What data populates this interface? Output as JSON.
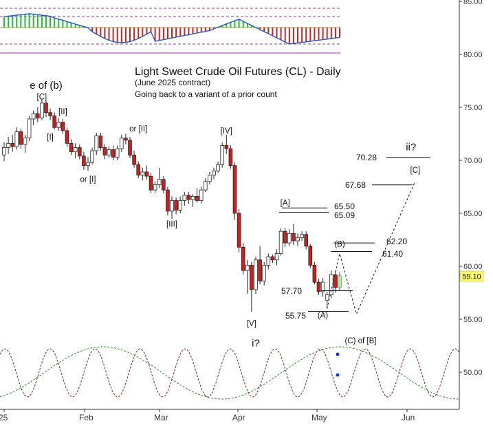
{
  "chart_data": {
    "type": "candlestick",
    "title": "Light Sweet Crude Oil Futures (CL) - Daily",
    "subtitle": "(June 2025 contract)",
    "note": "Going back to a variant of a prior count",
    "y_ticks": [
      "50.00",
      "55.00",
      "60.00",
      "65.00",
      "70.00",
      "75.00",
      "80.00",
      "85.00"
    ],
    "x_ticks": [
      "25",
      "Feb",
      "Mar",
      "Apr",
      "May",
      "Jun"
    ],
    "ylim": [
      46.5,
      85.5
    ],
    "last_price": "59.10",
    "series": [
      {
        "t": 0,
        "o": 70.5,
        "h": 71.7,
        "l": 69.9,
        "c": 71.2
      },
      {
        "t": 1,
        "o": 71.2,
        "h": 72.2,
        "l": 70.6,
        "c": 71.6
      },
      {
        "t": 2,
        "o": 71.6,
        "h": 72.4,
        "l": 70.8,
        "c": 71.3
      },
      {
        "t": 3,
        "o": 71.3,
        "h": 73.1,
        "l": 71.0,
        "c": 72.7
      },
      {
        "t": 4,
        "o": 72.7,
        "h": 73.0,
        "l": 71.1,
        "c": 71.5
      },
      {
        "t": 5,
        "o": 71.5,
        "h": 72.4,
        "l": 70.7,
        "c": 72.1
      },
      {
        "t": 6,
        "o": 72.1,
        "h": 74.2,
        "l": 71.8,
        "c": 73.9
      },
      {
        "t": 7,
        "o": 73.9,
        "h": 74.7,
        "l": 73.3,
        "c": 74.4
      },
      {
        "t": 8,
        "o": 74.4,
        "h": 75.0,
        "l": 73.6,
        "c": 74.0
      },
      {
        "t": 9,
        "o": 74.0,
        "h": 75.8,
        "l": 73.8,
        "c": 75.4
      },
      {
        "t": 10,
        "o": 75.4,
        "h": 75.6,
        "l": 74.1,
        "c": 74.5
      },
      {
        "t": 11,
        "o": 74.5,
        "h": 74.9,
        "l": 73.8,
        "c": 74.2
      },
      {
        "t": 12,
        "o": 74.2,
        "h": 74.5,
        "l": 72.9,
        "c": 73.1
      },
      {
        "t": 13,
        "o": 73.1,
        "h": 74.0,
        "l": 72.8,
        "c": 73.6
      },
      {
        "t": 14,
        "o": 73.6,
        "h": 73.9,
        "l": 72.5,
        "c": 72.8
      },
      {
        "t": 15,
        "o": 72.8,
        "h": 73.1,
        "l": 71.3,
        "c": 71.6
      },
      {
        "t": 16,
        "o": 71.6,
        "h": 72.0,
        "l": 70.5,
        "c": 70.8
      },
      {
        "t": 17,
        "o": 70.8,
        "h": 71.6,
        "l": 70.2,
        "c": 71.2
      },
      {
        "t": 18,
        "o": 71.2,
        "h": 71.5,
        "l": 70.1,
        "c": 70.4
      },
      {
        "t": 19,
        "o": 70.4,
        "h": 70.8,
        "l": 69.1,
        "c": 69.5
      },
      {
        "t": 20,
        "o": 69.5,
        "h": 70.3,
        "l": 69.0,
        "c": 69.8
      },
      {
        "t": 21,
        "o": 69.8,
        "h": 71.2,
        "l": 69.6,
        "c": 70.9
      },
      {
        "t": 22,
        "o": 70.9,
        "h": 72.6,
        "l": 70.5,
        "c": 72.3
      },
      {
        "t": 23,
        "o": 72.3,
        "h": 72.6,
        "l": 70.9,
        "c": 71.2
      },
      {
        "t": 24,
        "o": 71.2,
        "h": 71.5,
        "l": 70.1,
        "c": 70.5
      },
      {
        "t": 25,
        "o": 70.5,
        "h": 71.3,
        "l": 70.2,
        "c": 71.0
      },
      {
        "t": 26,
        "o": 71.0,
        "h": 71.4,
        "l": 70.0,
        "c": 70.3
      },
      {
        "t": 27,
        "o": 70.3,
        "h": 71.4,
        "l": 70.0,
        "c": 71.1
      },
      {
        "t": 28,
        "o": 71.1,
        "h": 72.4,
        "l": 70.8,
        "c": 72.1
      },
      {
        "t": 29,
        "o": 72.1,
        "h": 72.5,
        "l": 71.5,
        "c": 71.9
      },
      {
        "t": 30,
        "o": 71.9,
        "h": 72.2,
        "l": 70.2,
        "c": 70.5
      },
      {
        "t": 31,
        "o": 70.5,
        "h": 70.9,
        "l": 69.3,
        "c": 69.6
      },
      {
        "t": 32,
        "o": 69.6,
        "h": 69.9,
        "l": 68.3,
        "c": 68.6
      },
      {
        "t": 33,
        "o": 68.6,
        "h": 69.3,
        "l": 68.1,
        "c": 68.9
      },
      {
        "t": 34,
        "o": 68.9,
        "h": 69.5,
        "l": 68.2,
        "c": 68.5
      },
      {
        "t": 35,
        "o": 68.5,
        "h": 68.8,
        "l": 66.9,
        "c": 67.2
      },
      {
        "t": 36,
        "o": 67.2,
        "h": 68.0,
        "l": 66.9,
        "c": 67.7
      },
      {
        "t": 37,
        "o": 67.7,
        "h": 69.3,
        "l": 67.4,
        "c": 68.2
      },
      {
        "t": 38,
        "o": 68.2,
        "h": 68.5,
        "l": 66.9,
        "c": 67.2
      },
      {
        "t": 39,
        "o": 67.2,
        "h": 67.5,
        "l": 64.8,
        "c": 65.2
      },
      {
        "t": 40,
        "o": 65.2,
        "h": 66.6,
        "l": 64.5,
        "c": 66.2
      },
      {
        "t": 41,
        "o": 66.2,
        "h": 66.5,
        "l": 64.9,
        "c": 65.3
      },
      {
        "t": 42,
        "o": 65.3,
        "h": 66.6,
        "l": 65.0,
        "c": 66.2
      },
      {
        "t": 43,
        "o": 66.2,
        "h": 67.0,
        "l": 65.7,
        "c": 66.7
      },
      {
        "t": 44,
        "o": 66.7,
        "h": 67.0,
        "l": 65.9,
        "c": 66.3
      },
      {
        "t": 45,
        "o": 66.3,
        "h": 66.8,
        "l": 65.6,
        "c": 66.6
      },
      {
        "t": 46,
        "o": 66.6,
        "h": 67.4,
        "l": 66.0,
        "c": 66.2
      },
      {
        "t": 47,
        "o": 66.2,
        "h": 67.5,
        "l": 65.9,
        "c": 67.2
      },
      {
        "t": 48,
        "o": 67.2,
        "h": 68.3,
        "l": 67.0,
        "c": 68.0
      },
      {
        "t": 49,
        "o": 68.0,
        "h": 68.9,
        "l": 67.7,
        "c": 68.6
      },
      {
        "t": 50,
        "o": 68.6,
        "h": 69.3,
        "l": 68.2,
        "c": 69.0
      },
      {
        "t": 51,
        "o": 69.0,
        "h": 69.9,
        "l": 68.8,
        "c": 69.6
      },
      {
        "t": 52,
        "o": 69.6,
        "h": 71.7,
        "l": 69.3,
        "c": 71.4
      },
      {
        "t": 53,
        "o": 71.4,
        "h": 72.4,
        "l": 70.6,
        "c": 71.1
      },
      {
        "t": 54,
        "o": 71.1,
        "h": 71.4,
        "l": 69.2,
        "c": 69.5
      },
      {
        "t": 55,
        "o": 69.5,
        "h": 69.8,
        "l": 64.4,
        "c": 65.0
      },
      {
        "t": 56,
        "o": 65.0,
        "h": 65.4,
        "l": 61.3,
        "c": 61.8
      },
      {
        "t": 57,
        "o": 61.8,
        "h": 62.2,
        "l": 59.2,
        "c": 59.6
      },
      {
        "t": 58,
        "o": 59.6,
        "h": 60.6,
        "l": 57.4,
        "c": 60.1
      },
      {
        "t": 59,
        "o": 60.1,
        "h": 60.4,
        "l": 55.7,
        "c": 57.8
      },
      {
        "t": 60,
        "o": 57.8,
        "h": 60.9,
        "l": 57.4,
        "c": 60.6
      },
      {
        "t": 61,
        "o": 60.6,
        "h": 61.9,
        "l": 58.3,
        "c": 58.6
      },
      {
        "t": 62,
        "o": 58.6,
        "h": 60.4,
        "l": 58.2,
        "c": 60.1
      },
      {
        "t": 63,
        "o": 60.1,
        "h": 61.2,
        "l": 59.7,
        "c": 60.9
      },
      {
        "t": 64,
        "o": 60.9,
        "h": 61.1,
        "l": 60.3,
        "c": 60.6
      },
      {
        "t": 65,
        "o": 60.6,
        "h": 61.6,
        "l": 60.1,
        "c": 61.2
      },
      {
        "t": 66,
        "o": 61.2,
        "h": 63.6,
        "l": 61.0,
        "c": 63.3
      },
      {
        "t": 67,
        "o": 63.3,
        "h": 63.6,
        "l": 61.8,
        "c": 62.2
      },
      {
        "t": 68,
        "o": 62.2,
        "h": 63.5,
        "l": 61.9,
        "c": 63.1
      },
      {
        "t": 69,
        "o": 63.1,
        "h": 64.0,
        "l": 62.0,
        "c": 62.4
      },
      {
        "t": 70,
        "o": 62.4,
        "h": 63.1,
        "l": 61.9,
        "c": 62.7
      },
      {
        "t": 71,
        "o": 62.7,
        "h": 63.3,
        "l": 62.4,
        "c": 63.0
      },
      {
        "t": 72,
        "o": 63.0,
        "h": 63.3,
        "l": 61.6,
        "c": 61.9
      },
      {
        "t": 73,
        "o": 61.9,
        "h": 62.1,
        "l": 59.8,
        "c": 60.1
      },
      {
        "t": 74,
        "o": 60.1,
        "h": 60.4,
        "l": 58.3,
        "c": 58.5
      },
      {
        "t": 75,
        "o": 58.5,
        "h": 58.8,
        "l": 57.3,
        "c": 57.6
      },
      {
        "t": 76,
        "o": 57.6,
        "h": 58.9,
        "l": 57.1,
        "c": 58.5
      },
      {
        "t": 77,
        "o": 56.8,
        "h": 57.6,
        "l": 56.1,
        "c": 57.3
      },
      {
        "t": 78,
        "o": 57.3,
        "h": 59.6,
        "l": 57.0,
        "c": 59.2
      },
      {
        "t": 79,
        "o": 59.2,
        "h": 59.6,
        "l": 57.5,
        "c": 58.0
      },
      {
        "t": 80,
        "o": 58.0,
        "h": 59.4,
        "l": 57.8,
        "c": 59.1
      }
    ],
    "levels": [
      {
        "label": "70.28",
        "value": 70.28
      },
      {
        "label": "67.68",
        "value": 67.68
      },
      {
        "label": "65.50",
        "value": 65.5
      },
      {
        "label": "65.09",
        "value": 65.09
      },
      {
        "label": "62.20",
        "value": 62.2
      },
      {
        "label": "61.40",
        "value": 61.4
      },
      {
        "label": "57.70",
        "value": 57.7
      },
      {
        "label": "55.75",
        "value": 55.75
      }
    ],
    "wave_labels": [
      {
        "text": "e of (b)",
        "t": 10,
        "y": 77.0
      },
      {
        "text": "[C]",
        "t": 9,
        "y": 76.0
      },
      {
        "text": "[II]",
        "t": 14,
        "y": 74.6
      },
      {
        "text": "[I]",
        "t": 11,
        "y": 72.2
      },
      {
        "text": "or [II]",
        "t": 32,
        "y": 73.0
      },
      {
        "text": "or [I]",
        "t": 20,
        "y": 68.2
      },
      {
        "text": "[III]",
        "t": 40,
        "y": 64.0
      },
      {
        "text": "[IV]",
        "t": 53,
        "y": 72.8
      },
      {
        "text": "[V]",
        "t": 59,
        "y": 54.6
      },
      {
        "text": "i?",
        "t": 60,
        "y": 52.7
      },
      {
        "text": "[A]",
        "t": 67,
        "y": 66.0
      },
      {
        "text": "(B)",
        "t": 80,
        "y": 62.1
      },
      {
        "text": "(A)",
        "t": 76,
        "y": 55.4
      },
      {
        "text": "(C) of [B]",
        "t": 85,
        "y": 53.0
      },
      {
        "text": "[C]",
        "t": 98,
        "y": 69.1
      },
      {
        "text": "ii?",
        "t": 97,
        "y": 71.2
      }
    ],
    "projection": [
      {
        "t": 77,
        "y": 56.0
      },
      {
        "t": 80,
        "y": 61.2
      },
      {
        "t": 84,
        "y": 55.5
      },
      {
        "t": 98,
        "y": 68.0
      }
    ]
  }
}
